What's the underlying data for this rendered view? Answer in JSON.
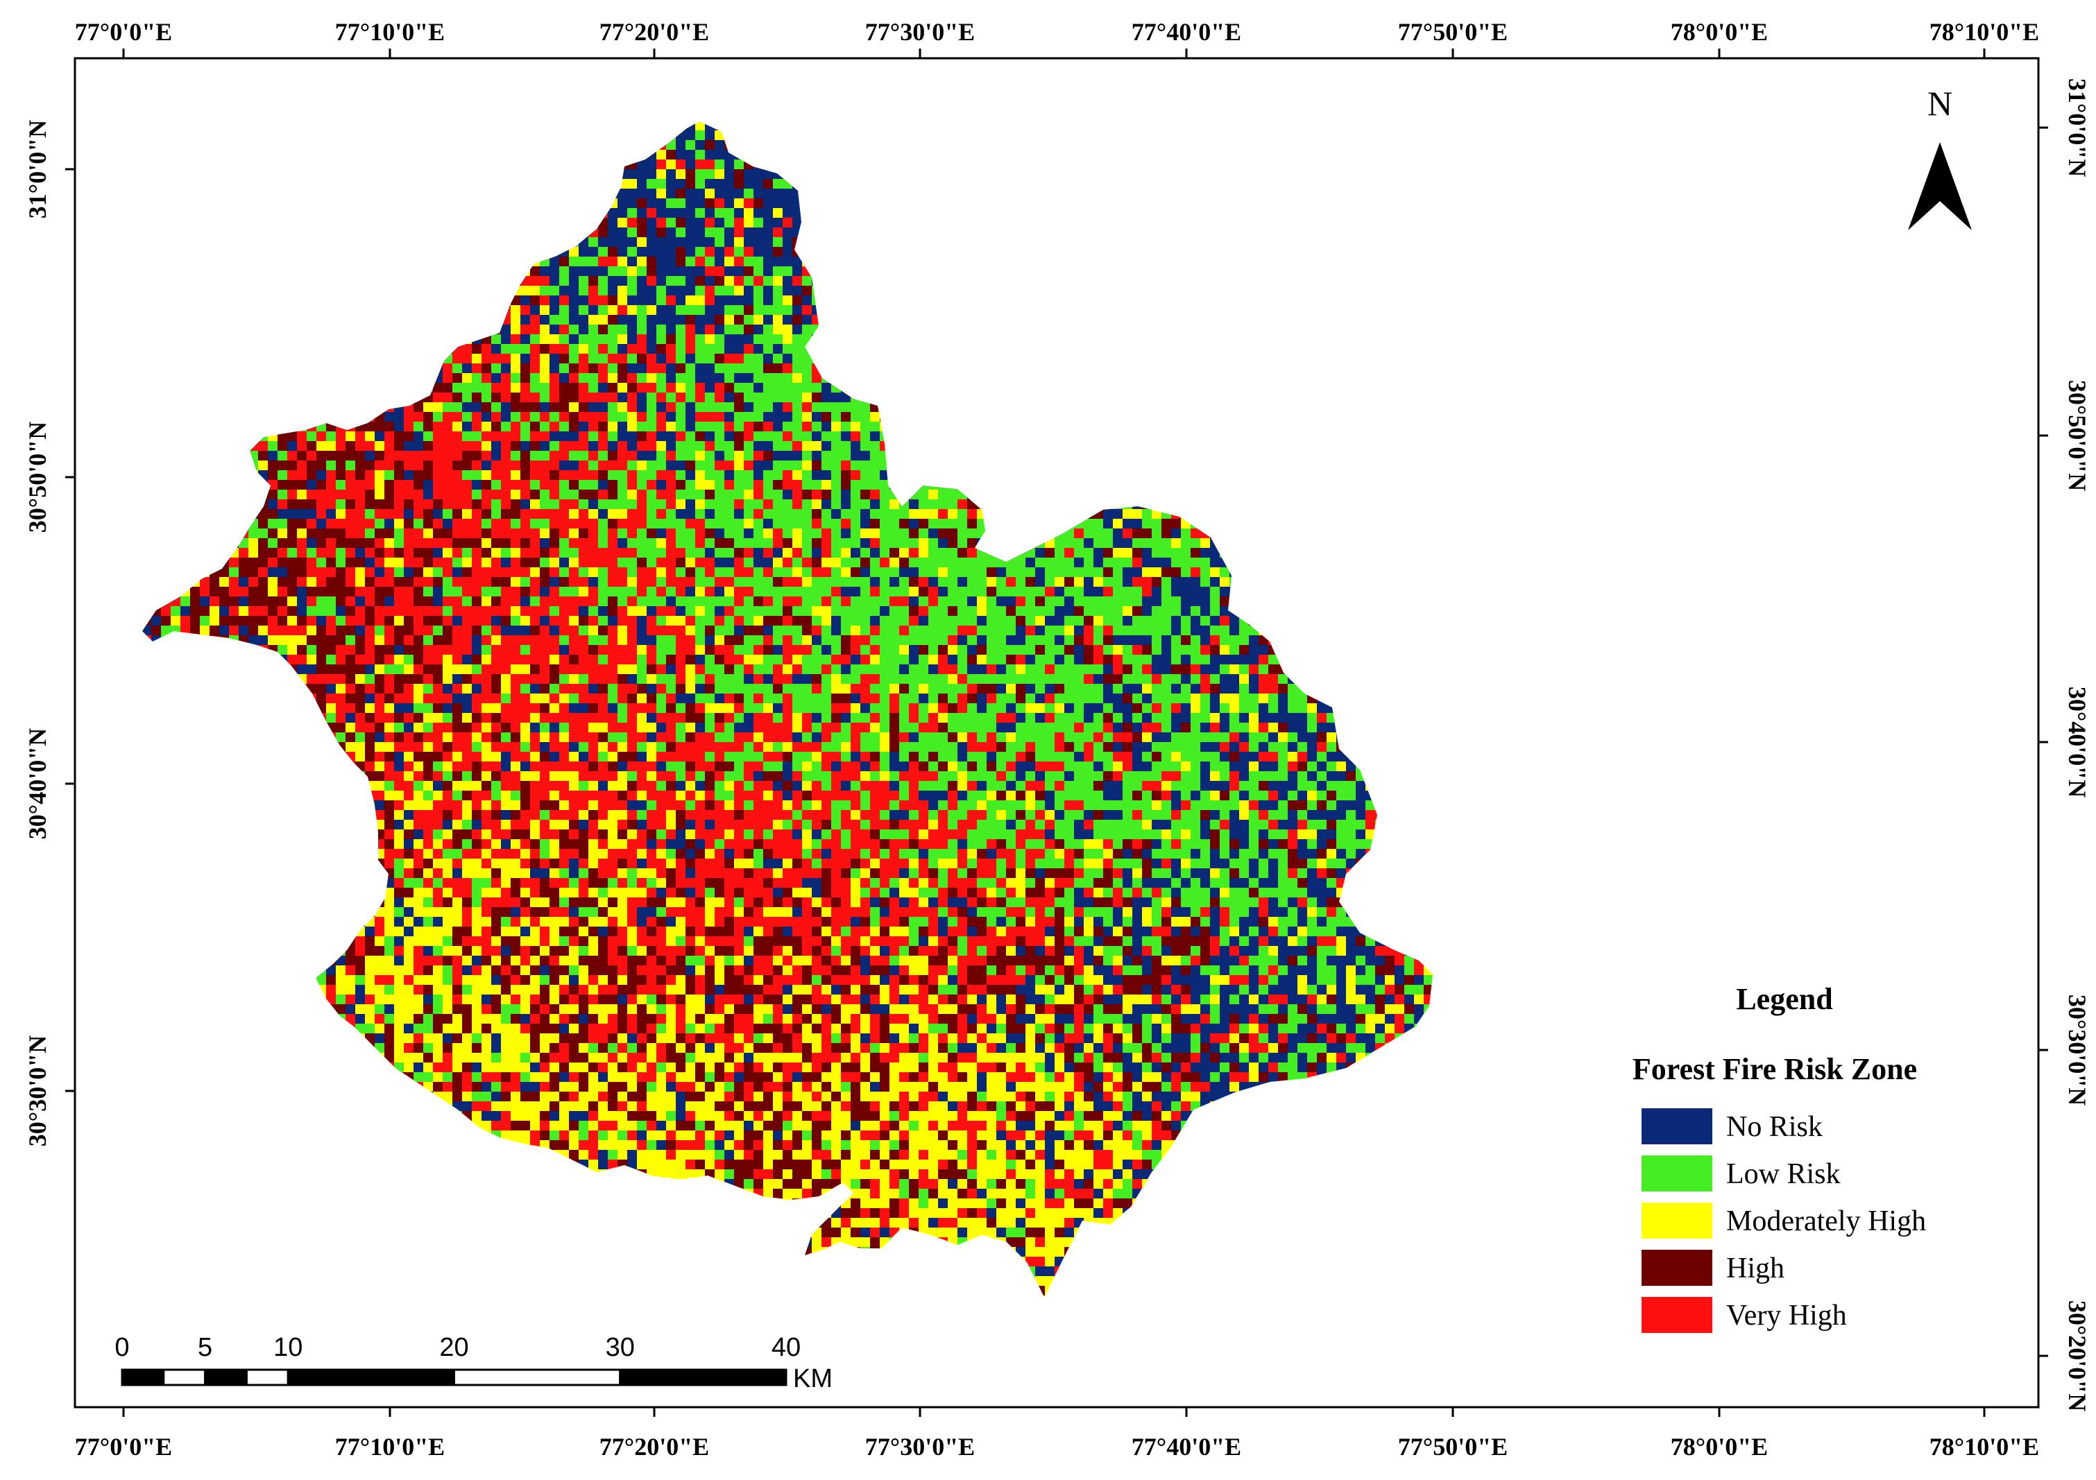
{
  "map": {
    "top_ticks": [
      "77°0'0\"E",
      "77°10'0\"E",
      "77°20'0\"E",
      "77°30'0\"E",
      "77°40'0\"E",
      "77°50'0\"E",
      "78°0'0\"E",
      "78°10'0\"E"
    ],
    "bottom_ticks": [
      "77°0'0\"E",
      "77°10'0\"E",
      "77°20'0\"E",
      "77°30'0\"E",
      "77°40'0\"E",
      "77°50'0\"E",
      "78°0'0\"E",
      "78°10'0\"E"
    ],
    "left_ticks": [
      "31°0'0\"N",
      "30°50'0\"N",
      "30°40'0\"N",
      "30°30'0\"N"
    ],
    "right_ticks": [
      "31°0'0\"N",
      "30°50'0\"N",
      "30°40'0\"N",
      "30°30'0\"N",
      "30°20'0\"N"
    ],
    "north_arrow": "N",
    "legend": {
      "title": "Legend",
      "subtitle": "Forest Fire Risk Zone",
      "items": [
        {
          "label": "No Risk",
          "color": "#0a2a78"
        },
        {
          "label": "Low Risk",
          "color": "#44ee22"
        },
        {
          "label": "Moderately High",
          "color": "#ffff00"
        },
        {
          "label": "High",
          "color": "#6e0000"
        },
        {
          "label": "Very High",
          "color": "#ff1010"
        }
      ]
    },
    "scale_bar": {
      "ticks": [
        "0",
        "5",
        "10",
        "20",
        "30",
        "40"
      ],
      "unit": "KM"
    }
  }
}
